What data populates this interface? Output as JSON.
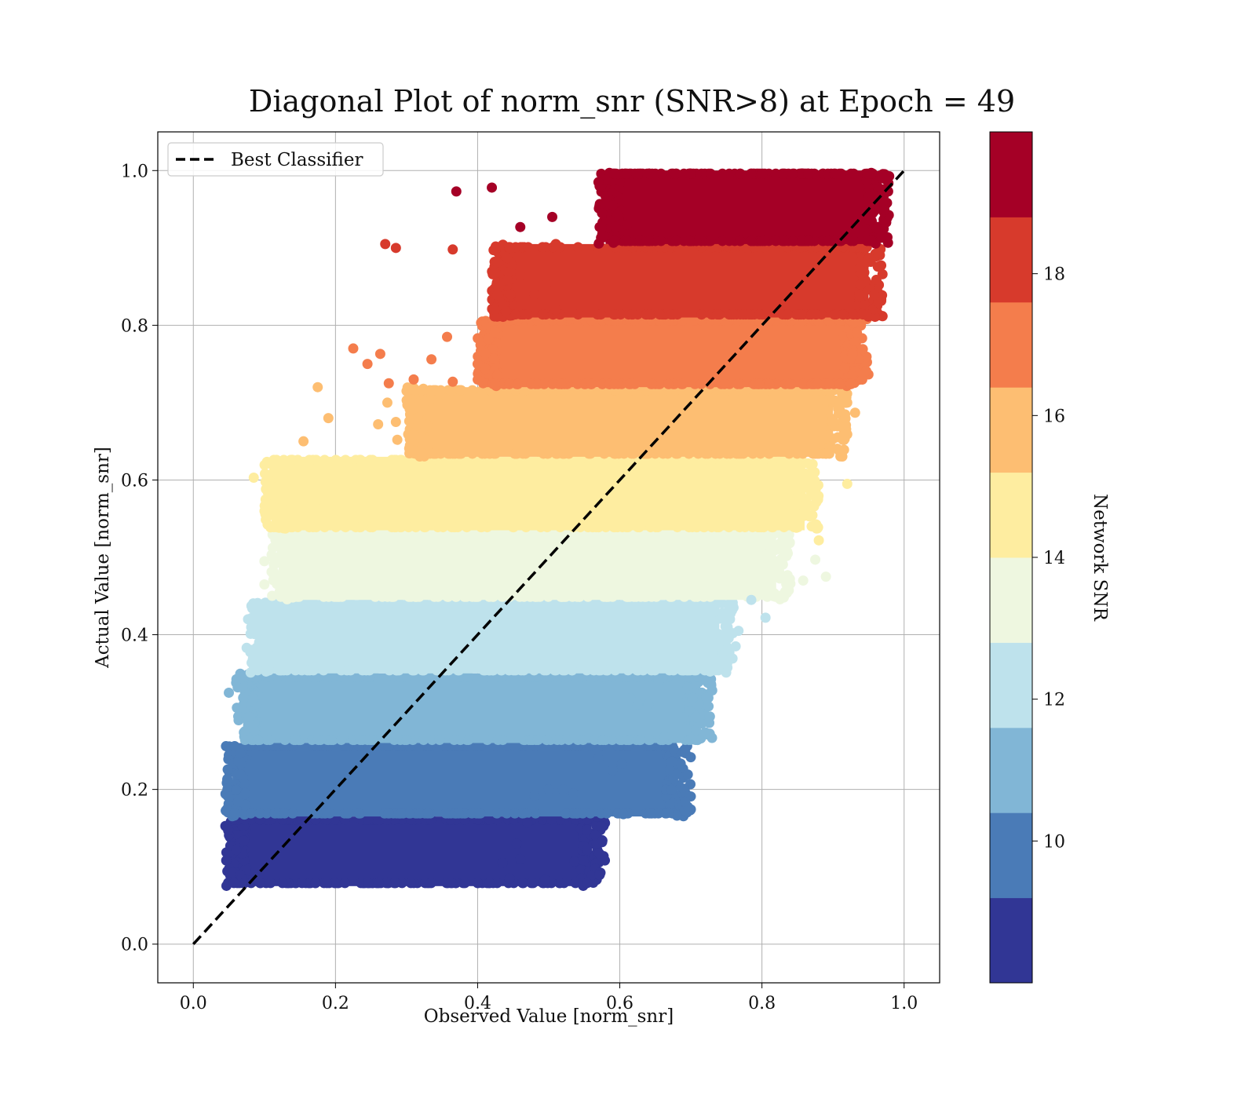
{
  "chart_data": {
    "type": "scatter",
    "title": "Diagonal Plot of norm_snr (SNR>8) at Epoch = 49",
    "xlabel": "Observed Value [norm_snr]",
    "ylabel": "Actual Value [norm_snr]",
    "xlim": [
      -0.05,
      1.05
    ],
    "ylim": [
      -0.05,
      1.05
    ],
    "xticks": [
      "0.0",
      "0.2",
      "0.4",
      "0.6",
      "0.8",
      "1.0"
    ],
    "yticks": [
      "0.0",
      "0.2",
      "0.4",
      "0.6",
      "0.8",
      "1.0"
    ],
    "grid": true,
    "legend": {
      "placement": "upper-left",
      "entries": [
        {
          "label": "Best Classifier",
          "style": "dashed",
          "color": "#000000"
        }
      ]
    },
    "reference_line": {
      "label": "Best Classifier",
      "x": [
        0.0,
        1.0
      ],
      "y": [
        0.0,
        1.0
      ]
    },
    "colorbar": {
      "label": "Network SNR",
      "range": [
        8,
        20
      ],
      "ticks": [
        "10",
        "12",
        "14",
        "16",
        "18"
      ],
      "bins": [
        {
          "from": 8.0,
          "to": 9.2,
          "color": "#313695"
        },
        {
          "from": 9.2,
          "to": 10.4,
          "color": "#4a7bb7"
        },
        {
          "from": 10.4,
          "to": 11.6,
          "color": "#81b6d6"
        },
        {
          "from": 11.6,
          "to": 12.8,
          "color": "#bee2ec"
        },
        {
          "from": 12.8,
          "to": 14.0,
          "color": "#eef7e0"
        },
        {
          "from": 14.0,
          "to": 15.2,
          "color": "#feeda0"
        },
        {
          "from": 15.2,
          "to": 16.4,
          "color": "#fdbe72"
        },
        {
          "from": 16.4,
          "to": 17.6,
          "color": "#f47d4c"
        },
        {
          "from": 17.6,
          "to": 18.8,
          "color": "#d73a2c"
        },
        {
          "from": 18.8,
          "to": 20.0,
          "color": "#a50026"
        }
      ]
    },
    "bands": [
      {
        "snr": "8.0-9.2",
        "color": "#313695",
        "y_range": [
          0.075,
          0.165
        ],
        "x_min": 0.045,
        "x_max": 0.58
      },
      {
        "snr": "9.2-10.4",
        "color": "#4a7bb7",
        "y_range": [
          0.165,
          0.26
        ],
        "x_min": 0.045,
        "x_max": 0.7
      },
      {
        "snr": "10.4-11.6",
        "color": "#81b6d6",
        "y_range": [
          0.26,
          0.35
        ],
        "x_min": 0.06,
        "x_max": 0.73
      },
      {
        "snr": "11.6-12.8",
        "color": "#bee2ec",
        "y_range": [
          0.35,
          0.445
        ],
        "x_min": 0.08,
        "x_max": 0.76
      },
      {
        "snr": "12.8-14.0",
        "color": "#eef7e0",
        "y_range": [
          0.445,
          0.535
        ],
        "x_min": 0.11,
        "x_max": 0.84
      },
      {
        "snr": "14.0-15.2",
        "color": "#feeda0",
        "y_range": [
          0.535,
          0.63
        ],
        "x_min": 0.1,
        "x_max": 0.88
      },
      {
        "snr": "15.2-16.4",
        "color": "#fdbe72",
        "y_range": [
          0.63,
          0.72
        ],
        "x_min": 0.3,
        "x_max": 0.92
      },
      {
        "snr": "16.4-17.6",
        "color": "#f47d4c",
        "y_range": [
          0.72,
          0.81
        ],
        "x_min": 0.4,
        "x_max": 0.95
      },
      {
        "snr": "17.6-18.8",
        "color": "#d73a2c",
        "y_range": [
          0.81,
          0.905
        ],
        "x_min": 0.42,
        "x_max": 0.97
      },
      {
        "snr": "18.8-20.0",
        "color": "#a50026",
        "y_range": [
          0.905,
          1.0
        ],
        "x_min": 0.57,
        "x_max": 0.98
      }
    ],
    "outliers": [
      {
        "x": 0.37,
        "y": 0.973,
        "color": "#a50026"
      },
      {
        "x": 0.42,
        "y": 0.978,
        "color": "#a50026"
      },
      {
        "x": 0.57,
        "y": 0.985,
        "color": "#a50026"
      },
      {
        "x": 0.46,
        "y": 0.927,
        "color": "#a50026"
      },
      {
        "x": 0.505,
        "y": 0.94,
        "color": "#a50026"
      },
      {
        "x": 0.575,
        "y": 0.945,
        "color": "#a50026"
      },
      {
        "x": 0.59,
        "y": 0.955,
        "color": "#a50026"
      },
      {
        "x": 0.61,
        "y": 0.93,
        "color": "#a50026"
      },
      {
        "x": 0.27,
        "y": 0.905,
        "color": "#d73a2c"
      },
      {
        "x": 0.285,
        "y": 0.9,
        "color": "#d73a2c"
      },
      {
        "x": 0.365,
        "y": 0.898,
        "color": "#d73a2c"
      },
      {
        "x": 0.445,
        "y": 0.9,
        "color": "#d73a2c"
      },
      {
        "x": 0.51,
        "y": 0.905,
        "color": "#d73a2c"
      },
      {
        "x": 0.46,
        "y": 0.865,
        "color": "#d73a2c"
      },
      {
        "x": 0.44,
        "y": 0.818,
        "color": "#d73a2c"
      },
      {
        "x": 0.48,
        "y": 0.84,
        "color": "#d73a2c"
      },
      {
        "x": 0.497,
        "y": 0.853,
        "color": "#d73a2c"
      },
      {
        "x": 0.51,
        "y": 0.82,
        "color": "#d73a2c"
      },
      {
        "x": 0.225,
        "y": 0.77,
        "color": "#f47d4c"
      },
      {
        "x": 0.245,
        "y": 0.75,
        "color": "#f47d4c"
      },
      {
        "x": 0.263,
        "y": 0.763,
        "color": "#f47d4c"
      },
      {
        "x": 0.275,
        "y": 0.725,
        "color": "#f47d4c"
      },
      {
        "x": 0.31,
        "y": 0.73,
        "color": "#f47d4c"
      },
      {
        "x": 0.335,
        "y": 0.756,
        "color": "#f47d4c"
      },
      {
        "x": 0.357,
        "y": 0.785,
        "color": "#f47d4c"
      },
      {
        "x": 0.365,
        "y": 0.727,
        "color": "#f47d4c"
      },
      {
        "x": 0.415,
        "y": 0.782,
        "color": "#f47d4c"
      },
      {
        "x": 0.4,
        "y": 0.75,
        "color": "#f47d4c"
      },
      {
        "x": 0.175,
        "y": 0.72,
        "color": "#fdbe72"
      },
      {
        "x": 0.19,
        "y": 0.68,
        "color": "#fdbe72"
      },
      {
        "x": 0.155,
        "y": 0.65,
        "color": "#fdbe72"
      },
      {
        "x": 0.26,
        "y": 0.672,
        "color": "#fdbe72"
      },
      {
        "x": 0.273,
        "y": 0.7,
        "color": "#fdbe72"
      },
      {
        "x": 0.285,
        "y": 0.675,
        "color": "#fdbe72"
      },
      {
        "x": 0.3,
        "y": 0.715,
        "color": "#fdbe72"
      },
      {
        "x": 0.315,
        "y": 0.68,
        "color": "#fdbe72"
      },
      {
        "x": 0.287,
        "y": 0.652,
        "color": "#fdbe72"
      },
      {
        "x": 0.33,
        "y": 0.645,
        "color": "#fdbe72"
      },
      {
        "x": 0.345,
        "y": 0.7,
        "color": "#fdbe72"
      },
      {
        "x": 0.375,
        "y": 0.7,
        "color": "#fdbe72"
      },
      {
        "x": 0.931,
        "y": 0.687,
        "color": "#fdbe72"
      },
      {
        "x": 0.92,
        "y": 0.7,
        "color": "#fdbe72"
      },
      {
        "x": 0.085,
        "y": 0.603,
        "color": "#feeda0"
      },
      {
        "x": 0.113,
        "y": 0.625,
        "color": "#feeda0"
      },
      {
        "x": 0.135,
        "y": 0.615,
        "color": "#feeda0"
      },
      {
        "x": 0.2,
        "y": 0.622,
        "color": "#feeda0"
      },
      {
        "x": 0.25,
        "y": 0.622,
        "color": "#feeda0"
      },
      {
        "x": 0.177,
        "y": 0.608,
        "color": "#feeda0"
      },
      {
        "x": 0.148,
        "y": 0.598,
        "color": "#feeda0"
      },
      {
        "x": 0.2,
        "y": 0.59,
        "color": "#feeda0"
      },
      {
        "x": 0.22,
        "y": 0.593,
        "color": "#feeda0"
      },
      {
        "x": 0.24,
        "y": 0.59,
        "color": "#feeda0"
      },
      {
        "x": 0.14,
        "y": 0.57,
        "color": "#feeda0"
      },
      {
        "x": 0.185,
        "y": 0.57,
        "color": "#feeda0"
      },
      {
        "x": 0.133,
        "y": 0.555,
        "color": "#feeda0"
      },
      {
        "x": 0.135,
        "y": 0.545,
        "color": "#feeda0"
      },
      {
        "x": 0.92,
        "y": 0.595,
        "color": "#feeda0"
      },
      {
        "x": 0.87,
        "y": 0.54,
        "color": "#feeda0"
      },
      {
        "x": 0.88,
        "y": 0.522,
        "color": "#feeda0"
      },
      {
        "x": 0.1,
        "y": 0.495,
        "color": "#eef7e0"
      },
      {
        "x": 0.112,
        "y": 0.5,
        "color": "#eef7e0"
      },
      {
        "x": 0.1,
        "y": 0.465,
        "color": "#eef7e0"
      },
      {
        "x": 0.15,
        "y": 0.525,
        "color": "#eef7e0"
      },
      {
        "x": 0.858,
        "y": 0.47,
        "color": "#eef7e0"
      },
      {
        "x": 0.875,
        "y": 0.497,
        "color": "#eef7e0"
      },
      {
        "x": 0.89,
        "y": 0.475,
        "color": "#eef7e0"
      },
      {
        "x": 0.84,
        "y": 0.466,
        "color": "#eef7e0"
      },
      {
        "x": 0.077,
        "y": 0.42,
        "color": "#bee2ec"
      },
      {
        "x": 0.075,
        "y": 0.383,
        "color": "#bee2ec"
      },
      {
        "x": 0.76,
        "y": 0.435,
        "color": "#bee2ec"
      },
      {
        "x": 0.785,
        "y": 0.445,
        "color": "#bee2ec"
      },
      {
        "x": 0.805,
        "y": 0.422,
        "color": "#bee2ec"
      },
      {
        "x": 0.767,
        "y": 0.405,
        "color": "#bee2ec"
      },
      {
        "x": 0.763,
        "y": 0.385,
        "color": "#bee2ec"
      },
      {
        "x": 0.72,
        "y": 0.385,
        "color": "#bee2ec"
      },
      {
        "x": 0.7,
        "y": 0.365,
        "color": "#bee2ec"
      },
      {
        "x": 0.67,
        "y": 0.355,
        "color": "#bee2ec"
      },
      {
        "x": 0.755,
        "y": 0.42,
        "color": "#bee2ec"
      },
      {
        "x": 0.73,
        "y": 0.328,
        "color": "#81b6d6"
      },
      {
        "x": 0.715,
        "y": 0.285,
        "color": "#81b6d6"
      },
      {
        "x": 0.69,
        "y": 0.293,
        "color": "#81b6d6"
      },
      {
        "x": 0.663,
        "y": 0.268,
        "color": "#81b6d6"
      },
      {
        "x": 0.64,
        "y": 0.31,
        "color": "#81b6d6"
      },
      {
        "x": 0.625,
        "y": 0.31,
        "color": "#81b6d6"
      },
      {
        "x": 0.615,
        "y": 0.318,
        "color": "#81b6d6"
      },
      {
        "x": 0.655,
        "y": 0.34,
        "color": "#81b6d6"
      },
      {
        "x": 0.05,
        "y": 0.325,
        "color": "#81b6d6"
      },
      {
        "x": 0.605,
        "y": 0.168,
        "color": "#4a7bb7"
      },
      {
        "x": 0.603,
        "y": 0.233,
        "color": "#4a7bb7"
      },
      {
        "x": 0.59,
        "y": 0.225,
        "color": "#4a7bb7"
      },
      {
        "x": 0.57,
        "y": 0.24,
        "color": "#4a7bb7"
      },
      {
        "x": 0.535,
        "y": 0.195,
        "color": "#4a7bb7"
      },
      {
        "x": 0.5,
        "y": 0.2,
        "color": "#4a7bb7"
      },
      {
        "x": 0.52,
        "y": 0.2,
        "color": "#4a7bb7"
      },
      {
        "x": 0.48,
        "y": 0.192,
        "color": "#4a7bb7"
      },
      {
        "x": 0.495,
        "y": 0.083,
        "color": "#313695"
      },
      {
        "x": 0.536,
        "y": 0.107,
        "color": "#313695"
      },
      {
        "x": 0.445,
        "y": 0.085,
        "color": "#313695"
      },
      {
        "x": 0.47,
        "y": 0.157,
        "color": "#313695"
      },
      {
        "x": 0.46,
        "y": 0.11,
        "color": "#313695"
      },
      {
        "x": 0.455,
        "y": 0.13,
        "color": "#313695"
      },
      {
        "x": 0.435,
        "y": 0.105,
        "color": "#313695"
      }
    ]
  }
}
